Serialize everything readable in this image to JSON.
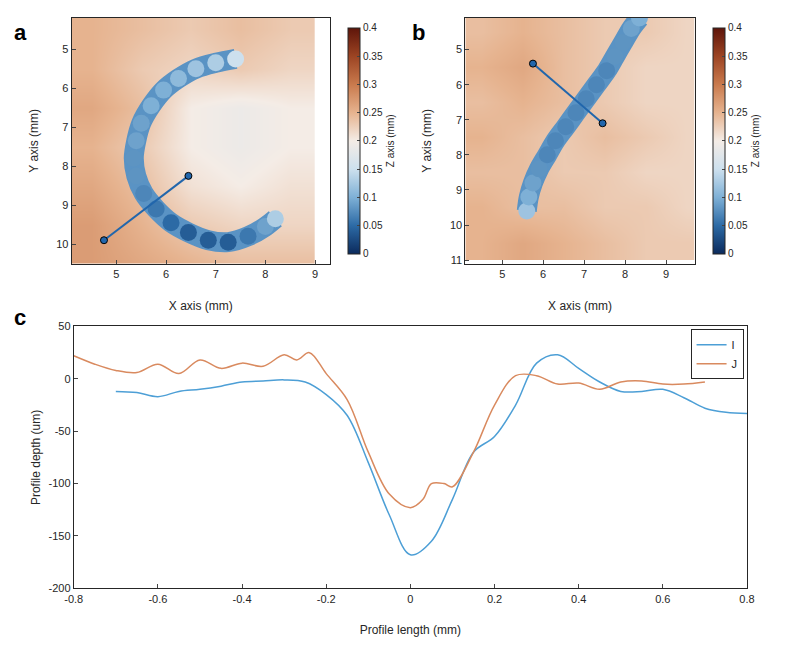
{
  "chart_data": [
    {
      "type": "heatmap",
      "panel_label": "a",
      "x_label": "X axis (mm)",
      "y_label": "Y axis (mm)",
      "xlim": [
        4.1,
        9.3
      ],
      "xticks": [
        5,
        6,
        7,
        8,
        9
      ],
      "ylim": [
        10.5,
        4.2
      ],
      "yticks": [
        5,
        6,
        7,
        8,
        9,
        10
      ],
      "cells": {
        "x": [
          4.5,
          5.5,
          6.5,
          7.5,
          8.5
        ],
        "y": [
          4.5,
          5.5,
          6.5,
          7.5,
          8.5,
          9.5,
          10.5
        ],
        "z": [
          [
            0.25,
            0.24,
            0.23,
            0.24,
            0.23
          ],
          [
            0.25,
            0.23,
            0.22,
            0.23,
            0.22
          ],
          [
            0.26,
            0.24,
            0.2,
            0.19,
            0.2
          ],
          [
            0.25,
            0.23,
            0.2,
            0.19,
            0.2
          ],
          [
            0.26,
            0.24,
            0.21,
            0.2,
            0.21
          ],
          [
            0.27,
            0.25,
            0.23,
            0.22,
            0.22
          ],
          [
            0.27,
            0.26,
            0.25,
            0.24,
            0.24
          ]
        ]
      },
      "groove": {
        "x": [
          7.4,
          7.0,
          6.6,
          6.25,
          5.95,
          5.7,
          5.5,
          5.4,
          5.35,
          5.4,
          5.55,
          5.8,
          6.1,
          6.45,
          6.85,
          7.25,
          7.65,
          8.0,
          8.2
        ],
        "y": [
          5.25,
          5.35,
          5.5,
          5.75,
          6.05,
          6.45,
          6.9,
          7.35,
          7.8,
          8.25,
          8.7,
          9.1,
          9.45,
          9.7,
          9.9,
          9.95,
          9.8,
          9.55,
          9.35
        ],
        "z": [
          0.15,
          0.13,
          0.12,
          0.11,
          0.1,
          0.1,
          0.09,
          0.09,
          0.08,
          0.08,
          0.07,
          0.06,
          0.05,
          0.04,
          0.04,
          0.04,
          0.06,
          0.09,
          0.13
        ]
      },
      "profile_line": {
        "x": [
          4.75,
          6.45
        ],
        "y": [
          9.9,
          8.25
        ]
      },
      "colorbar": {
        "title": "Z axis (mm)",
        "range": [
          0,
          0.4
        ],
        "ticks": [
          0,
          0.05,
          0.1,
          0.15,
          0.2,
          0.25,
          0.3,
          0.35,
          0.4
        ]
      }
    },
    {
      "type": "heatmap",
      "panel_label": "b",
      "x_label": "X axis (mm)",
      "y_label": "Y axis (mm)",
      "xlim": [
        4.1,
        9.7
      ],
      "xticks": [
        5,
        6,
        7,
        8,
        9
      ],
      "ylim": [
        11.1,
        4.1
      ],
      "yticks": [
        5,
        6,
        7,
        8,
        9,
        10,
        11
      ],
      "cells": {
        "x": [
          4.5,
          5.5,
          6.5,
          7.5,
          8.5,
          9.5
        ],
        "y": [
          4.5,
          5.5,
          6.5,
          7.5,
          8.5,
          9.5,
          10.5
        ],
        "z": [
          [
            0.24,
            0.25,
            0.24,
            0.23,
            0.23,
            0.22
          ],
          [
            0.25,
            0.26,
            0.24,
            0.23,
            0.22,
            0.22
          ],
          [
            0.24,
            0.25,
            0.24,
            0.23,
            0.22,
            0.22
          ],
          [
            0.25,
            0.24,
            0.23,
            0.24,
            0.23,
            0.22
          ],
          [
            0.24,
            0.24,
            0.23,
            0.23,
            0.22,
            0.22
          ],
          [
            0.25,
            0.24,
            0.24,
            0.23,
            0.23,
            0.22
          ],
          [
            0.25,
            0.26,
            0.25,
            0.24,
            0.23,
            0.23
          ]
        ]
      },
      "groove": {
        "x": [
          5.6,
          5.65,
          5.75,
          5.9,
          6.1,
          6.3,
          6.55,
          6.8,
          7.05,
          7.3,
          7.55,
          7.75,
          7.95,
          8.15,
          8.35
        ],
        "y": [
          9.6,
          9.2,
          8.8,
          8.4,
          8.0,
          7.6,
          7.2,
          6.8,
          6.4,
          6.0,
          5.6,
          5.2,
          4.8,
          4.4,
          4.1
        ],
        "z": [
          0.12,
          0.1,
          0.09,
          0.08,
          0.07,
          0.07,
          0.07,
          0.07,
          0.07,
          0.07,
          0.07,
          0.08,
          0.08,
          0.09,
          0.1
        ]
      },
      "profile_line": {
        "x": [
          5.75,
          7.45
        ],
        "y": [
          5.4,
          7.1
        ]
      },
      "colorbar": {
        "title": "Z axis (mm)",
        "range": [
          0,
          0.4
        ],
        "ticks": [
          0,
          0.05,
          0.1,
          0.15,
          0.2,
          0.25,
          0.3,
          0.35,
          0.4
        ]
      }
    },
    {
      "type": "line",
      "panel_label": "c",
      "x_label": "Profile length (mm)",
      "y_label": "Profile depth (um)",
      "xlim": [
        -0.8,
        0.8
      ],
      "xticks": [
        -0.8,
        -0.6,
        -0.4,
        -0.2,
        0,
        0.2,
        0.4,
        0.6,
        0.8
      ],
      "ylim": [
        -200,
        50
      ],
      "yticks": [
        -200,
        -150,
        -100,
        -50,
        0,
        50
      ],
      "legend": "top right",
      "series": [
        {
          "name": "I",
          "color": "#4d9fd6",
          "x": [
            -0.7,
            -0.65,
            -0.6,
            -0.55,
            -0.5,
            -0.45,
            -0.4,
            -0.35,
            -0.3,
            -0.25,
            -0.2,
            -0.15,
            -0.1,
            -0.05,
            0,
            0.05,
            0.1,
            0.15,
            0.2,
            0.25,
            0.3,
            0.35,
            0.4,
            0.45,
            0.5,
            0.55,
            0.6,
            0.65,
            0.7,
            0.75,
            0.8
          ],
          "values": [
            -12,
            -13,
            -17,
            -12,
            -10,
            -7,
            -3,
            -2,
            -1,
            -3,
            -15,
            -35,
            -80,
            -130,
            -168,
            -155,
            -115,
            -70,
            -55,
            -25,
            15,
            23,
            10,
            -3,
            -12,
            -12,
            -10,
            -18,
            -28,
            -32,
            -33
          ]
        },
        {
          "name": "J",
          "color": "#d98a5f",
          "x": [
            -0.8,
            -0.75,
            -0.7,
            -0.65,
            -0.6,
            -0.55,
            -0.5,
            -0.45,
            -0.4,
            -0.35,
            -0.3,
            -0.27,
            -0.24,
            -0.2,
            -0.15,
            -0.1,
            -0.05,
            0,
            0.03,
            0.05,
            0.08,
            0.1,
            0.15,
            0.2,
            0.25,
            0.3,
            0.35,
            0.4,
            0.45,
            0.5,
            0.55,
            0.6,
            0.65,
            0.7
          ],
          "values": [
            22,
            14,
            8,
            6,
            14,
            5,
            18,
            10,
            15,
            12,
            23,
            18,
            25,
            5,
            -20,
            -70,
            -110,
            -123,
            -115,
            -100,
            -100,
            -103,
            -70,
            -25,
            3,
            3,
            -5,
            -4,
            -10,
            -3,
            -2,
            -5,
            -5,
            -3
          ]
        }
      ]
    }
  ]
}
